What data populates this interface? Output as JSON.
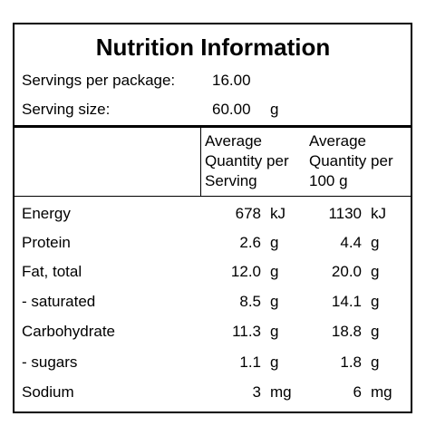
{
  "title": "Nutrition Information",
  "servings": {
    "servings_label": "Servings per package:",
    "servings_value": "16.00",
    "size_label": "Serving size:",
    "size_value": "60.00",
    "size_unit": "g"
  },
  "headers": {
    "per_serving": [
      "Average",
      "Quantity per",
      "Serving"
    ],
    "per_100g": [
      "Average",
      "Quantity per",
      "100 g"
    ]
  },
  "rows": [
    {
      "name": "Energy",
      "serving_value": "678",
      "serving_unit": "kJ",
      "per100_value": "1130",
      "per100_unit": "kJ"
    },
    {
      "name": "Protein",
      "serving_value": "2.6",
      "serving_unit": "g",
      "per100_value": "4.4",
      "per100_unit": "g"
    },
    {
      "name": "Fat, total",
      "serving_value": "12.0",
      "serving_unit": "g",
      "per100_value": "20.0",
      "per100_unit": "g"
    },
    {
      "name": "- saturated",
      "serving_value": "8.5",
      "serving_unit": "g",
      "per100_value": "14.1",
      "per100_unit": "g"
    },
    {
      "name": "Carbohydrate",
      "serving_value": "11.3",
      "serving_unit": "g",
      "per100_value": "18.8",
      "per100_unit": "g"
    },
    {
      "name": "- sugars",
      "serving_value": "1.1",
      "serving_unit": "g",
      "per100_value": "1.8",
      "per100_unit": "g"
    },
    {
      "name": "Sodium",
      "serving_value": "3",
      "serving_unit": "mg",
      "per100_value": "6",
      "per100_unit": "mg"
    }
  ]
}
